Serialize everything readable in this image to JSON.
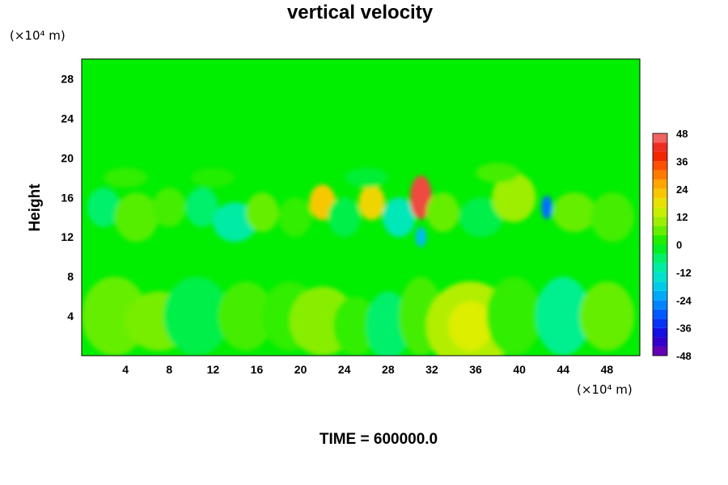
{
  "chart_data": {
    "type": "heatmap",
    "title": "vertical velocity",
    "xlabel": "",
    "ylabel": "Height",
    "x_unit": "(×10⁴ m)",
    "y_unit": "(×10⁴ m)",
    "xlim": [
      0,
      51
    ],
    "ylim": [
      0,
      30
    ],
    "x_ticks": [
      4,
      8,
      12,
      16,
      20,
      24,
      28,
      32,
      36,
      40,
      44,
      48
    ],
    "y_ticks": [
      4,
      8,
      12,
      16,
      20,
      24,
      28
    ],
    "footer": "TIME = 600000.0",
    "colorbar": {
      "range": [
        -48,
        48
      ],
      "step": 4,
      "tick_labels": [
        "48",
        "36",
        "24",
        "12",
        "0",
        "-12",
        "-24",
        "-36",
        "-48"
      ]
    },
    "features": [
      {
        "x": 31,
        "y": 16,
        "value": 44
      },
      {
        "x": 31,
        "y": 12,
        "value": -20
      },
      {
        "x": 42.5,
        "y": 15,
        "value": -28
      },
      {
        "x": 22,
        "y": 15.5,
        "value": 22
      },
      {
        "x": 26.5,
        "y": 15.5,
        "value": 20
      },
      {
        "x": 35.5,
        "y": 3,
        "value": 16
      },
      {
        "x": 28,
        "y": 3,
        "value": -6
      },
      {
        "x": 44,
        "y": 4,
        "value": -8
      },
      {
        "x": 10,
        "y": 4,
        "value": -5
      },
      {
        "x": 14,
        "y": 13.5,
        "value": -10
      }
    ]
  }
}
